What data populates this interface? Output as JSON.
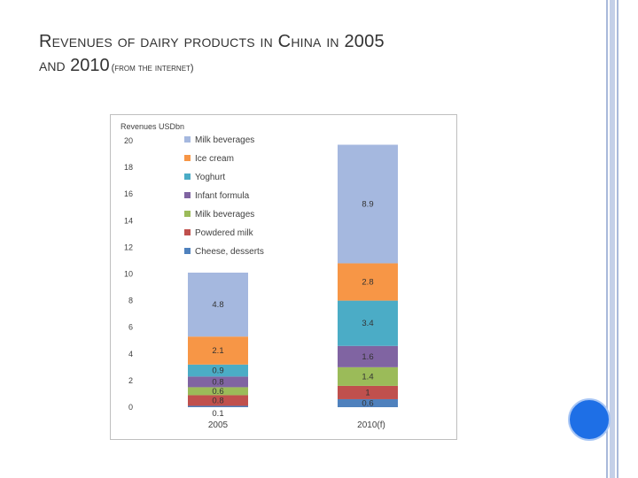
{
  "slide": {
    "title_line1": "Revenues of dairy products in China in 2005",
    "title_line2": "and 2010",
    "title_source": "(from the internet)"
  },
  "chart_data": {
    "type": "bar",
    "stacked": true,
    "ylabel": "Revenues USDbn",
    "ylim": [
      0,
      20
    ],
    "yticks": [
      0,
      2,
      4,
      6,
      8,
      10,
      12,
      14,
      16,
      18,
      20
    ],
    "categories": [
      "2005",
      "2010(f)"
    ],
    "legend_position": "top-left",
    "series": [
      {
        "name": "Cheese, desserts",
        "color": "#4f81bd",
        "values": [
          0.1,
          0.6
        ]
      },
      {
        "name": "Powdered milk",
        "color": "#c0504d",
        "values": [
          0.8,
          1
        ]
      },
      {
        "name": "Milk beverages",
        "color": "#9bbb59",
        "values": [
          0.6,
          1.4
        ]
      },
      {
        "name": "Infant formula",
        "color": "#8064a2",
        "values": [
          0.8,
          1.6
        ]
      },
      {
        "name": "Yoghurt",
        "color": "#4bacc6",
        "values": [
          0.9,
          3.4
        ]
      },
      {
        "name": "Ice cream",
        "color": "#f79646",
        "values": [
          2.1,
          2.8
        ]
      },
      {
        "name": "Milk beverages",
        "color": "#a5b8df",
        "values": [
          4.8,
          8.9
        ]
      }
    ]
  }
}
